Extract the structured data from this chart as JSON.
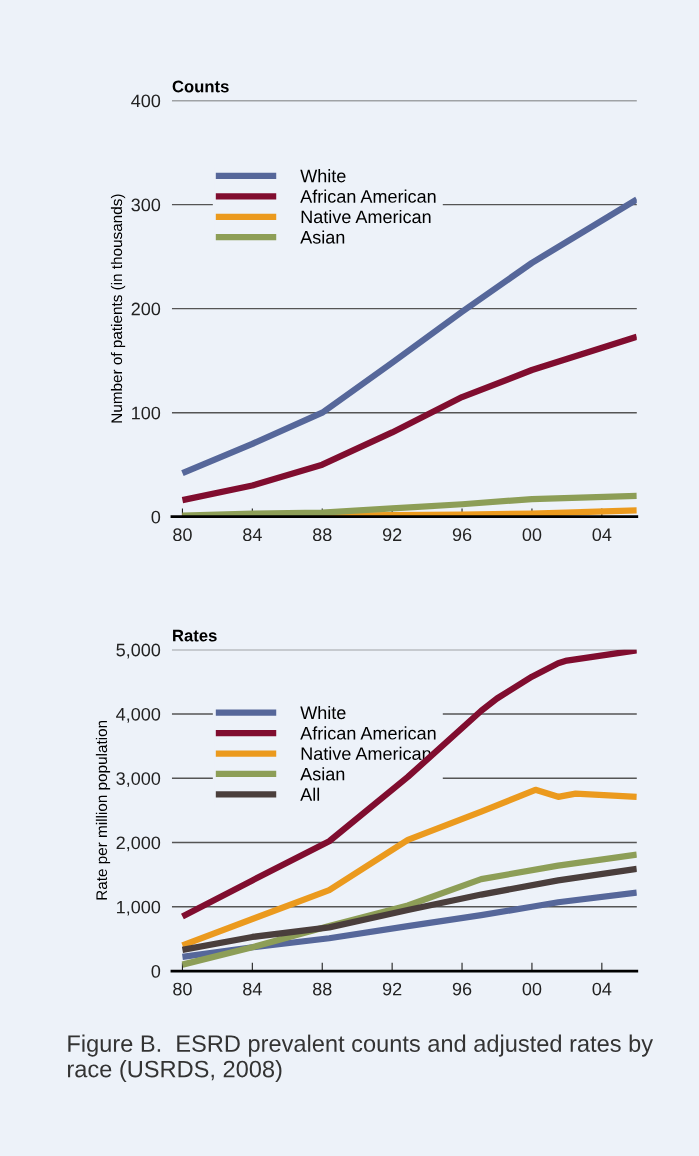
{
  "chart_data": [
    {
      "type": "line",
      "title": "Counts",
      "ylabel": "Number of patients (in thousands)",
      "xlim": [
        1979.4,
        2006
      ],
      "xticks": [
        {
          "value": 1980,
          "label": "80"
        },
        {
          "value": 1984,
          "label": "84"
        },
        {
          "value": 1988,
          "label": "88"
        },
        {
          "value": 1992,
          "label": "92"
        },
        {
          "value": 1996,
          "label": "96"
        },
        {
          "value": 2000,
          "label": "00"
        },
        {
          "value": 2004,
          "label": "04"
        }
      ],
      "ylim": [
        0,
        400
      ],
      "yticks": [
        0,
        100,
        200,
        300,
        400
      ],
      "grid": "y",
      "legend": "top left",
      "series": [
        {
          "name": "White",
          "color": "#56679a",
          "x": [
            1980,
            1984,
            1988,
            1992,
            1996,
            2000,
            2006
          ],
          "values": [
            42,
            70,
            100,
            148,
            197,
            244,
            305
          ]
        },
        {
          "name": "African American",
          "color": "#800d2f",
          "x": [
            1980,
            1984,
            1988,
            1992,
            1996,
            2000,
            2006
          ],
          "values": [
            16,
            30,
            50,
            81,
            115,
            141,
            173
          ]
        },
        {
          "name": "Native American",
          "color": "#eb9a1e",
          "x": [
            1980,
            1988,
            1996,
            2000,
            2006
          ],
          "values": [
            0,
            1,
            2,
            3,
            6
          ]
        },
        {
          "name": "Asian",
          "color": "#8d9e57",
          "x": [
            1980,
            1984,
            1988,
            1992,
            1996,
            2000,
            2006
          ],
          "values": [
            1,
            3,
            4,
            8,
            12,
            17,
            20
          ]
        }
      ]
    },
    {
      "type": "line",
      "title": "Rates",
      "ylabel": "Rate per million population",
      "xlim": [
        1979.4,
        2006
      ],
      "xticks": [
        {
          "value": 1980,
          "label": "80"
        },
        {
          "value": 1984,
          "label": "84"
        },
        {
          "value": 1988,
          "label": "88"
        },
        {
          "value": 1992,
          "label": "92"
        },
        {
          "value": 1996,
          "label": "96"
        },
        {
          "value": 2000,
          "label": "00"
        },
        {
          "value": 2004,
          "label": "04"
        }
      ],
      "ylim": [
        0,
        5000
      ],
      "yticks": [
        0,
        {
          "value": 1000,
          "label": "1,000"
        },
        {
          "value": 2000,
          "label": "2,000"
        },
        {
          "value": 3000,
          "label": "3,000"
        },
        {
          "value": 4000,
          "label": "4,000"
        },
        {
          "value": 5000,
          "label": "5,000"
        }
      ],
      "grid": "y",
      "legend": "top left",
      "annotations": [
        "Figure B.  ESRD prevalent counts and adjusted rates by race (USRDS, 2008)"
      ],
      "series": [
        {
          "name": "White",
          "color": "#56679a",
          "x": [
            1980,
            1984,
            1988.4,
            1992.9,
            1997.1,
            2000,
            2001.5,
            2006
          ],
          "values": [
            220,
            370,
            510,
            700,
            870,
            1000,
            1070,
            1220
          ]
        },
        {
          "name": "African American",
          "color": "#800d2f",
          "x": [
            1980,
            1984,
            1988.4,
            1992.9,
            1997.1,
            1998,
            2000,
            2001.5,
            2002,
            2006
          ],
          "values": [
            850,
            1410,
            2020,
            3020,
            4050,
            4240,
            4580,
            4790,
            4830,
            4990
          ]
        },
        {
          "name": "Native American",
          "color": "#eb9a1e",
          "x": [
            1980,
            1988.4,
            1992.9,
            1997.1,
            2000.2,
            2001.5,
            2002.5,
            2006
          ],
          "values": [
            400,
            1260,
            2040,
            2480,
            2820,
            2710,
            2760,
            2710
          ]
        },
        {
          "name": "Asian",
          "color": "#8d9e57",
          "x": [
            1980,
            1984,
            1988.4,
            1992.9,
            1997.1,
            2001.5,
            2006
          ],
          "values": [
            100,
            370,
            700,
            1020,
            1430,
            1640,
            1810
          ]
        },
        {
          "name": "All",
          "color": "#4a3e3c",
          "x": [
            1980,
            1984,
            1988.4,
            1992.9,
            1997.1,
            2001.5,
            2006
          ],
          "values": [
            330,
            530,
            680,
            950,
            1190,
            1410,
            1590
          ]
        }
      ]
    }
  ]
}
